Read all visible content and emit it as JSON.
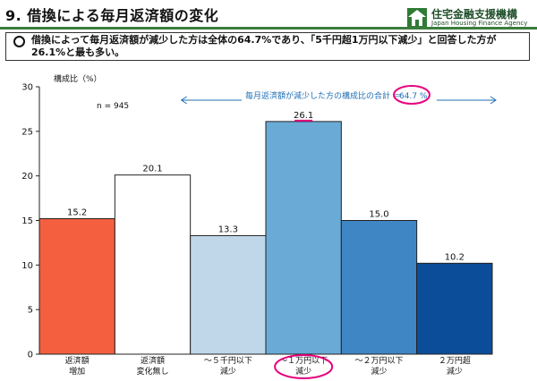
{
  "page": {
    "title": "9. 借換による毎月返済額の変化",
    "logo_name": "住宅金融支援機構",
    "logo_en": "Japan Housing Finance Agency",
    "summary": "借換によって毎月返済額が減少した方は全体の64.7%であり、「5千円超1万円以下減少」と回答した方が26.1%と最も多い。"
  },
  "colors": {
    "increase": "#f4603f",
    "nochange": "#ffffff",
    "under5k": "#bfd7e9",
    "5k_10k": "#6aaad6",
    "10k_20k": "#3f86c4",
    "over20k": "#0c4d99",
    "highlight": "#e6007e",
    "annotation": "#1f6fb5"
  },
  "chart_data": {
    "type": "bar",
    "ylabel": "構成比（%）",
    "ylim": [
      0,
      30
    ],
    "yticks": [
      0,
      5,
      10,
      15,
      20,
      25,
      30
    ],
    "n_label": "n = 945",
    "categories": [
      [
        "返済額",
        "増加"
      ],
      [
        "返済額",
        "変化無し"
      ],
      [
        "～５千円以下",
        "減少"
      ],
      [
        "～１万円以下",
        "減少"
      ],
      [
        "～２万円以下",
        "減少"
      ],
      [
        "２万円超",
        "減少"
      ]
    ],
    "values": [
      15.2,
      20.1,
      13.3,
      26.1,
      15.0,
      10.2
    ],
    "value_labels": [
      "15.2",
      "20.1",
      "13.3",
      "26.1",
      "15.0",
      "10.2"
    ],
    "bar_colors": [
      "#f4603f",
      "#ffffff",
      "#bfd7e9",
      "#6aaad6",
      "#3f86c4",
      "#0c4d99"
    ],
    "annotation_text": "毎月返済額が減少した方の構成比の合計 ＝",
    "annotation_total": "64.7 %",
    "highlight_index": 3
  }
}
